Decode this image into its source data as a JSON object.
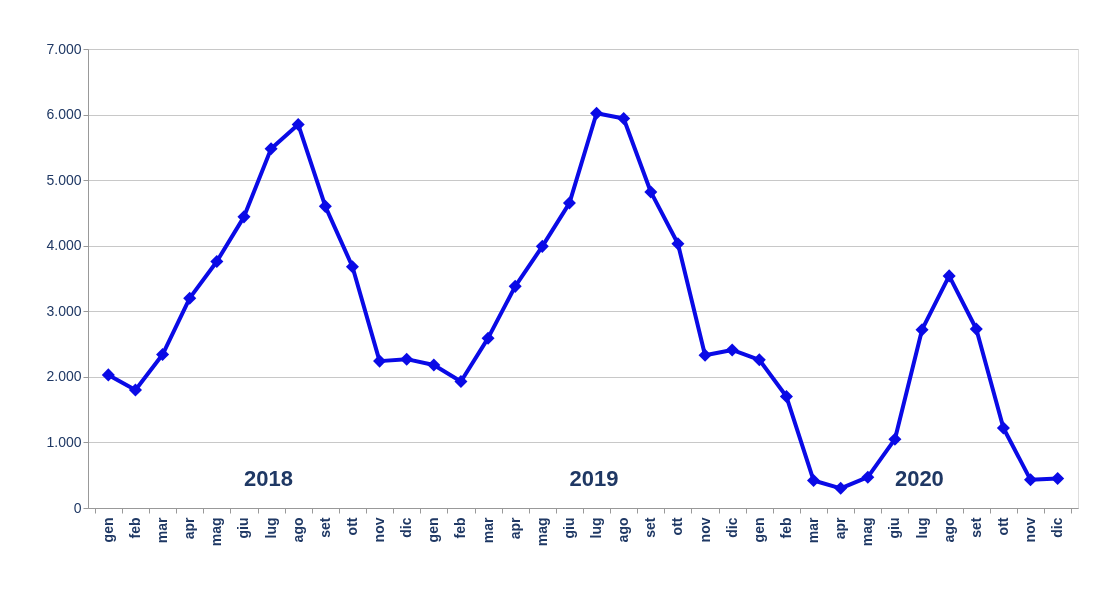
{
  "chart_data": {
    "type": "line",
    "categories": [
      "gen",
      "feb",
      "mar",
      "apr",
      "mag",
      "giu",
      "lug",
      "ago",
      "set",
      "ott",
      "nov",
      "dic",
      "gen",
      "feb",
      "mar",
      "apr",
      "mag",
      "giu",
      "lug",
      "ago",
      "set",
      "ott",
      "nov",
      "dic",
      "gen",
      "feb",
      "mar",
      "apr",
      "mag",
      "giu",
      "lug",
      "ago",
      "set",
      "ott",
      "nov",
      "dic"
    ],
    "series": [
      {
        "color": "#0a0ae6",
        "values": [
          2030,
          1800,
          2340,
          3200,
          3760,
          4440,
          5480,
          5850,
          4600,
          3680,
          2240,
          2270,
          2180,
          1930,
          2590,
          3380,
          3990,
          4650,
          6020,
          5940,
          4820,
          4030,
          2330,
          2410,
          2260,
          1700,
          420,
          300,
          470,
          1050,
          2720,
          3540,
          2730,
          1220,
          430,
          450
        ]
      }
    ],
    "ylim": [
      0,
      7000
    ],
    "yticks": [
      {
        "value": 0,
        "label": "0"
      },
      {
        "value": 1000,
        "label": "1.000"
      },
      {
        "value": 2000,
        "label": "2.000"
      },
      {
        "value": 3000,
        "label": "3.000"
      },
      {
        "value": 4000,
        "label": "4.000"
      },
      {
        "value": 5000,
        "label": "5.000"
      },
      {
        "value": 6000,
        "label": "6.000"
      },
      {
        "value": 7000,
        "label": "7.000"
      }
    ],
    "annotations": [
      "2018",
      "2019",
      "2020"
    ],
    "grid": "y",
    "marker": "diamond",
    "line_style": "solid"
  }
}
